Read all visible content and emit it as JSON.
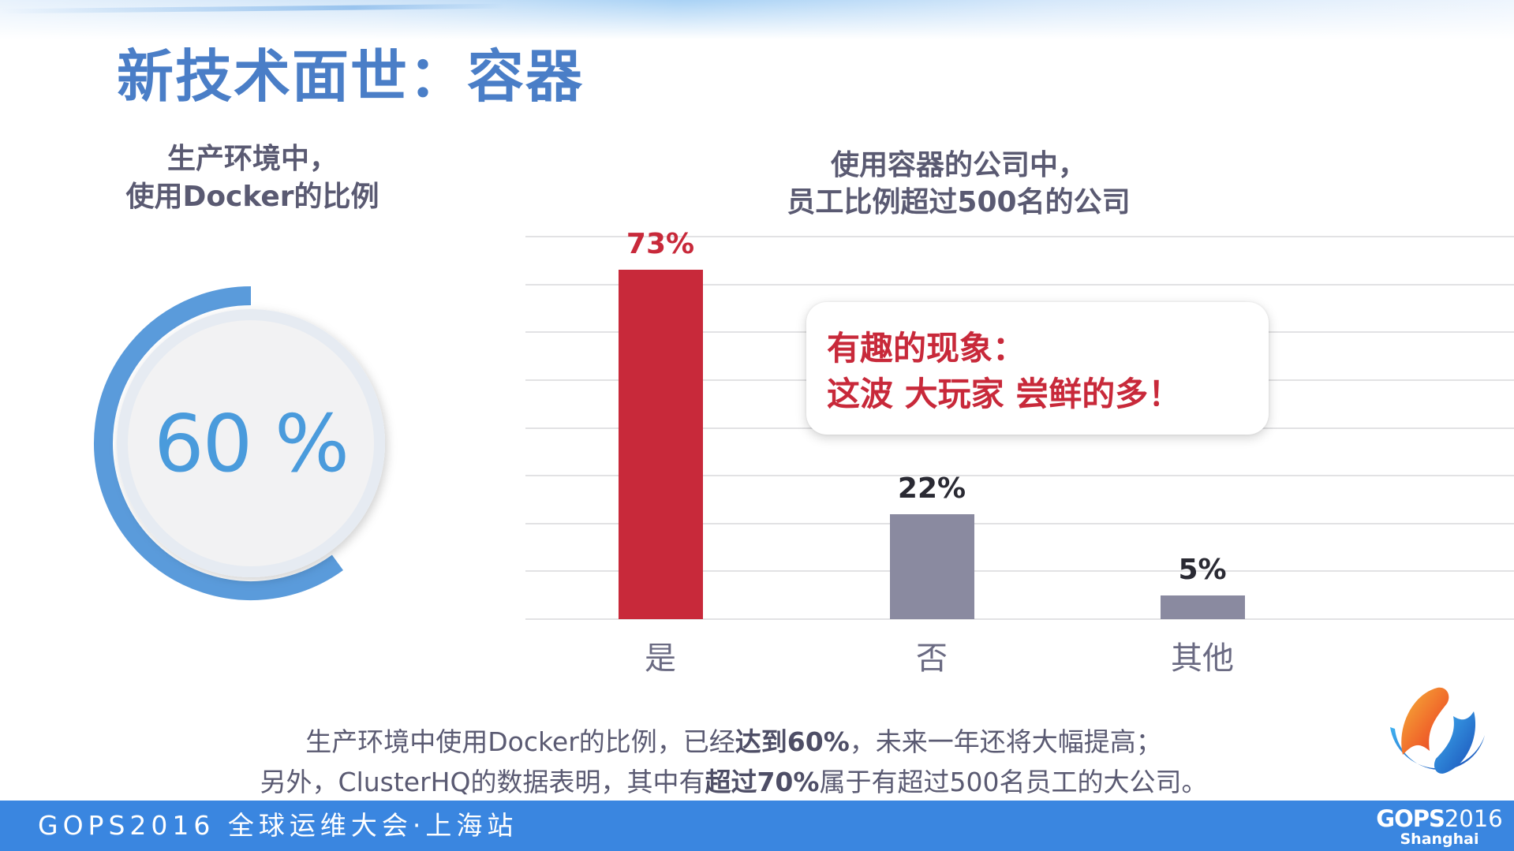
{
  "slide": {
    "title": "新技术面世：容器"
  },
  "left_panel": {
    "heading_line1": "生产环境中，",
    "heading_line2": "使用Docker的比例",
    "gauge": {
      "value": 60,
      "label": "60 %",
      "arc_color": "#5A9BDB",
      "text_color": "#4A9BDC",
      "disc_color": "#F2F2F3"
    }
  },
  "chart_data": {
    "type": "bar",
    "title": "使用容器的公司中，员工比例超过500名的公司",
    "title_line1": "使用容器的公司中，",
    "title_line2": "员工比例超过500名的公司",
    "categories": [
      "是",
      "否",
      "其他"
    ],
    "values": [
      73,
      22,
      5
    ],
    "value_labels": [
      "73%",
      "22%",
      "5%"
    ],
    "colors": [
      "#C8293A",
      "#8A8AA0",
      "#8A8AA0"
    ],
    "label_colors": [
      "#C8293A",
      "#2A2A33",
      "#2A2A33"
    ],
    "xlabel": "",
    "ylabel": "",
    "ylim": [
      0,
      80
    ],
    "gridlines": [
      0,
      10,
      20,
      30,
      40,
      50,
      60,
      70,
      80
    ],
    "grid": true,
    "legend": "none"
  },
  "callout": {
    "line1": "有趣的现象：",
    "line2": "这波 大玩家 尝鲜的多！"
  },
  "caption": {
    "line1_a": "生产环境中使用Docker的比例，已经",
    "line1_bold": "达到60%",
    "line1_b": "，未来一年还将大幅提高；",
    "line2_a": "另外，ClusterHQ的数据表明，其中有",
    "line2_bold": "超过70%",
    "line2_b": "属于有超过500名员工的大公司。"
  },
  "footer": {
    "event_text": "GOPS2016 全球运维大会·上海站",
    "brand_name": "GOPS",
    "brand_year": "2016",
    "brand_city": "Shanghai",
    "bar_color": "#3A86E0"
  }
}
